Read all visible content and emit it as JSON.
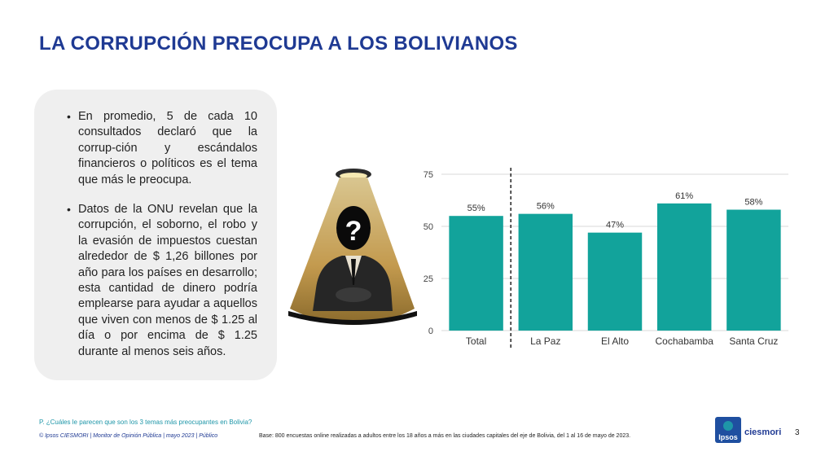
{
  "title": "LA CORRUPCIÓN PREOCUPA A LOS BOLIVIANOS",
  "bullets": [
    "En promedio, 5 de cada 10 consultados declaró que la corrup-ción y escándalos financieros o políticos es el tema que más le preocupa.",
    "Datos de la ONU revelan que la corrupción, el soborno, el robo y la evasión de impuestos cuestan alrededor de $ 1,26 billones por año para los países en desarrollo; esta cantidad de dinero podría emplearse para ayudar a aquellos que viven con menos de $ 1.25 al día o por encima de $ 1.25 durante al menos seis años."
  ],
  "illustration_icon": "anonymous-businessman-icon",
  "illustration_mark": "?",
  "chart_data": {
    "type": "bar",
    "categories": [
      "Total",
      "La Paz",
      "El Alto",
      "Cochabamba",
      "Santa Cruz"
    ],
    "values": [
      55,
      56,
      47,
      61,
      58
    ],
    "data_labels": [
      "55%",
      "56%",
      "47%",
      "61%",
      "58%"
    ],
    "ylim": [
      0,
      75
    ],
    "yticks": [
      0,
      25,
      50,
      75
    ],
    "bar_color": "#12a39b",
    "grid": true,
    "separator_after": "Total"
  },
  "question": "P. ¿Cuáles le parecen que son los 3 temas más preocupantes en Bolivia?",
  "footer_left": "© Ipsos CIESMORI | Monitor de Opinión Pública | mayo 2023 | Público",
  "footer_base": "Base: 800 encuestas online realizadas a adultos entre los 18 años a más en las ciudades capitales del eje de Bolivia, del 1 al 16 de mayo de 2023.",
  "logo_ipsos": "Ipsos",
  "logo_ciesmori": "ciesmori",
  "page_number": "3",
  "colors": {
    "title": "#1f3a93",
    "accent": "#1e96a8",
    "bars": "#12a39b"
  }
}
